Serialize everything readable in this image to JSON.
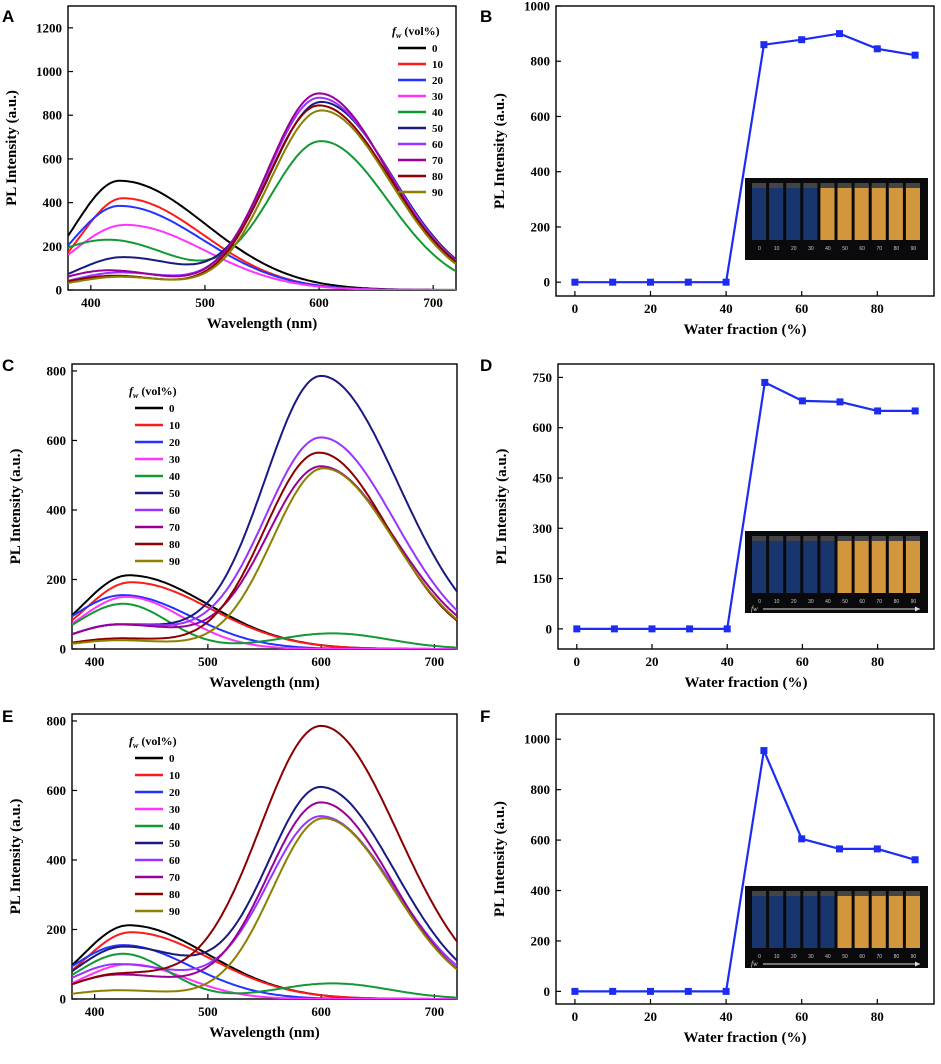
{
  "colors": {
    "series_0": "#000000",
    "series_10": "#ff1a1a",
    "series_20": "#2233ff",
    "series_30": "#ff33ff",
    "series_40": "#119933",
    "series_50": "#1a1a80",
    "series_60": "#9933ff",
    "series_70": "#990099",
    "series_80": "#8b0000",
    "series_90": "#8b8000",
    "line_blue": "#1c2cf0",
    "vial_blue": "#1b3a78",
    "vial_orange": "#e8a543"
  },
  "legend": {
    "title_f": "f",
    "title_w": "w",
    "title_rest": " (vol%)",
    "entries": [
      "0",
      "10",
      "20",
      "30",
      "40",
      "50",
      "60",
      "70",
      "80",
      "90"
    ]
  },
  "chart_data": [
    {
      "panel": "A",
      "type": "line",
      "title": "",
      "xlabel": "Wavelength (nm)",
      "ylabel": "PL Intensity (a.u.)",
      "xlim": [
        380,
        720
      ],
      "ylim": [
        0,
        1300
      ],
      "xticks": [
        400,
        500,
        600,
        700
      ],
      "yticks": [
        0,
        200,
        400,
        600,
        800,
        1000,
        1200
      ],
      "series": [
        {
          "name": "0",
          "blue": {
            "A": 500,
            "mu": 425,
            "sl": 38,
            "sr": 75
          },
          "orange": {
            "A": 0,
            "mu": 600,
            "sl": 45,
            "sr": 60
          },
          "base": 0
        },
        {
          "name": "10",
          "blue": {
            "A": 420,
            "mu": 428,
            "sl": 36,
            "sr": 70
          },
          "orange": {
            "A": 0,
            "mu": 600,
            "sl": 45,
            "sr": 60
          },
          "base": 0
        },
        {
          "name": "20",
          "blue": {
            "A": 385,
            "mu": 425,
            "sl": 40,
            "sr": 72
          },
          "orange": {
            "A": 0,
            "mu": 600,
            "sl": 45,
            "sr": 60
          },
          "base": 0
        },
        {
          "name": "30",
          "blue": {
            "A": 298,
            "mu": 430,
            "sl": 45,
            "sr": 70
          },
          "orange": {
            "A": 0,
            "mu": 600,
            "sl": 45,
            "sr": 60
          },
          "base": 0
        },
        {
          "name": "40",
          "blue": {
            "A": 230,
            "mu": 415,
            "sl": 60,
            "sr": 60
          },
          "orange": {
            "A": 680,
            "mu": 602,
            "sl": 45,
            "sr": 58
          },
          "base": 0
        },
        {
          "name": "50",
          "blue": {
            "A": 150,
            "mu": 428,
            "sl": 40,
            "sr": 55
          },
          "orange": {
            "A": 860,
            "mu": 602,
            "sl": 45,
            "sr": 62
          },
          "base": 0
        },
        {
          "name": "60",
          "blue": {
            "A": 80,
            "mu": 425,
            "sl": 40,
            "sr": 50
          },
          "orange": {
            "A": 880,
            "mu": 600,
            "sl": 45,
            "sr": 62
          },
          "base": 0
        },
        {
          "name": "70",
          "blue": {
            "A": 90,
            "mu": 415,
            "sl": 40,
            "sr": 50
          },
          "orange": {
            "A": 900,
            "mu": 600,
            "sl": 45,
            "sr": 60
          },
          "base": 0
        },
        {
          "name": "80",
          "blue": {
            "A": 65,
            "mu": 420,
            "sl": 40,
            "sr": 45
          },
          "orange": {
            "A": 845,
            "mu": 600,
            "sl": 45,
            "sr": 62
          },
          "base": 0
        },
        {
          "name": "90",
          "blue": {
            "A": 60,
            "mu": 425,
            "sl": 40,
            "sr": 45
          },
          "orange": {
            "A": 822,
            "mu": 602,
            "sl": 45,
            "sr": 60
          },
          "base": 0
        }
      ]
    },
    {
      "panel": "B",
      "type": "line",
      "title": "",
      "xlabel": "Water fraction (%)",
      "ylabel": "PL Intensity (a.u.)",
      "xlim": [
        -5,
        95
      ],
      "ylim": [
        -50,
        1000
      ],
      "xticks": [
        0,
        20,
        40,
        60,
        80
      ],
      "yticks": [
        0,
        200,
        400,
        600,
        800,
        1000
      ],
      "x": [
        0,
        10,
        20,
        30,
        40,
        50,
        60,
        70,
        80,
        90
      ],
      "values": [
        0,
        0,
        0,
        0,
        0,
        860,
        878,
        900,
        845,
        822
      ],
      "inset": {
        "vial_labels": [
          "0",
          "10",
          "20",
          "30",
          "40",
          "50",
          "60",
          "70",
          "80",
          "90"
        ],
        "orange_from": 4,
        "arrow": false
      }
    },
    {
      "panel": "C",
      "type": "line",
      "title": "",
      "xlabel": "Wavelength (nm)",
      "ylabel": "PL Intensity (a.u.)",
      "xlim": [
        380,
        720
      ],
      "ylim": [
        0,
        820
      ],
      "xticks": [
        400,
        500,
        600,
        700
      ],
      "yticks": [
        0,
        200,
        400,
        600,
        800
      ],
      "series": [
        {
          "name": "0",
          "blue": {
            "A": 212,
            "mu": 430,
            "sl": 40,
            "sr": 70
          },
          "orange": {
            "A": 0,
            "mu": 600,
            "sl": 45,
            "sr": 60
          },
          "base": 0
        },
        {
          "name": "10",
          "blue": {
            "A": 192,
            "mu": 432,
            "sl": 40,
            "sr": 70
          },
          "orange": {
            "A": 0,
            "mu": 600,
            "sl": 45,
            "sr": 60
          },
          "base": 0
        },
        {
          "name": "20",
          "blue": {
            "A": 155,
            "mu": 425,
            "sl": 45,
            "sr": 60
          },
          "orange": {
            "A": 0,
            "mu": 600,
            "sl": 45,
            "sr": 60
          },
          "base": 0
        },
        {
          "name": "30",
          "blue": {
            "A": 150,
            "mu": 428,
            "sl": 40,
            "sr": 50
          },
          "orange": {
            "A": 0,
            "mu": 600,
            "sl": 45,
            "sr": 60
          },
          "base": 0
        },
        {
          "name": "40",
          "blue": {
            "A": 130,
            "mu": 425,
            "sl": 40,
            "sr": 40
          },
          "orange": {
            "A": 45,
            "mu": 610,
            "sl": 50,
            "sr": 50
          },
          "base": 0
        },
        {
          "name": "50",
          "blue": {
            "A": 70,
            "mu": 420,
            "sl": 40,
            "sr": 60
          },
          "orange": {
            "A": 785,
            "mu": 600,
            "sl": 50,
            "sr": 68
          },
          "base": 0
        },
        {
          "name": "60",
          "blue": {
            "A": 70,
            "mu": 420,
            "sl": 40,
            "sr": 60
          },
          "orange": {
            "A": 608,
            "mu": 600,
            "sl": 50,
            "sr": 65
          },
          "base": 0
        },
        {
          "name": "70",
          "blue": {
            "A": 70,
            "mu": 420,
            "sl": 40,
            "sr": 60
          },
          "orange": {
            "A": 525,
            "mu": 600,
            "sl": 48,
            "sr": 65
          },
          "base": 0
        },
        {
          "name": "80",
          "blue": {
            "A": 30,
            "mu": 420,
            "sl": 40,
            "sr": 50
          },
          "orange": {
            "A": 565,
            "mu": 598,
            "sl": 48,
            "sr": 62
          },
          "base": 0
        },
        {
          "name": "90",
          "blue": {
            "A": 25,
            "mu": 420,
            "sl": 40,
            "sr": 50
          },
          "orange": {
            "A": 520,
            "mu": 602,
            "sl": 45,
            "sr": 62
          },
          "base": 0
        }
      ]
    },
    {
      "panel": "D",
      "type": "line",
      "title": "",
      "xlabel": "Water fraction (%)",
      "ylabel": "PL Intensity (a.u.)",
      "xlim": [
        -5,
        95
      ],
      "ylim": [
        -60,
        790
      ],
      "xticks": [
        0,
        20,
        40,
        60,
        80
      ],
      "yticks": [
        0,
        150,
        300,
        450,
        600,
        750
      ],
      "x": [
        0,
        10,
        20,
        30,
        40,
        50,
        60,
        70,
        80,
        90
      ],
      "values": [
        0,
        0,
        0,
        0,
        0,
        735,
        680,
        677,
        650,
        650
      ],
      "inset": {
        "vial_labels": [
          "0",
          "10",
          "20",
          "30",
          "40",
          "50",
          "60",
          "70",
          "80",
          "90"
        ],
        "orange_from": 5,
        "arrow": true,
        "arrow_label": "fw"
      }
    },
    {
      "panel": "E",
      "type": "line",
      "title": "",
      "xlabel": "Wavelength (nm)",
      "ylabel": "PL Intensity (a.u.)",
      "xlim": [
        380,
        720
      ],
      "ylim": [
        0,
        820
      ],
      "xticks": [
        400,
        500,
        600,
        700
      ],
      "yticks": [
        0,
        200,
        400,
        600,
        800
      ],
      "series": [
        {
          "name": "0",
          "blue": {
            "A": 212,
            "mu": 430,
            "sl": 40,
            "sr": 70
          },
          "orange": {
            "A": 0,
            "mu": 600,
            "sl": 45,
            "sr": 60
          },
          "base": 0
        },
        {
          "name": "10",
          "blue": {
            "A": 192,
            "mu": 432,
            "sl": 40,
            "sr": 70
          },
          "orange": {
            "A": 0,
            "mu": 600,
            "sl": 45,
            "sr": 60
          },
          "base": 0
        },
        {
          "name": "20",
          "blue": {
            "A": 155,
            "mu": 425,
            "sl": 45,
            "sr": 60
          },
          "orange": {
            "A": 0,
            "mu": 600,
            "sl": 45,
            "sr": 60
          },
          "base": 0
        },
        {
          "name": "30",
          "blue": {
            "A": 100,
            "mu": 430,
            "sl": 40,
            "sr": 50
          },
          "orange": {
            "A": 0,
            "mu": 600,
            "sl": 45,
            "sr": 60
          },
          "base": 0
        },
        {
          "name": "40",
          "blue": {
            "A": 130,
            "mu": 425,
            "sl": 40,
            "sr": 40
          },
          "orange": {
            "A": 45,
            "mu": 610,
            "sl": 50,
            "sr": 50
          },
          "base": 0
        },
        {
          "name": "50",
          "blue": {
            "A": 150,
            "mu": 425,
            "sl": 40,
            "sr": 60
          },
          "orange": {
            "A": 608,
            "mu": 600,
            "sl": 48,
            "sr": 65
          },
          "base": 0
        },
        {
          "name": "60",
          "blue": {
            "A": 100,
            "mu": 420,
            "sl": 40,
            "sr": 60
          },
          "orange": {
            "A": 525,
            "mu": 600,
            "sl": 48,
            "sr": 65
          },
          "base": 0
        },
        {
          "name": "70",
          "blue": {
            "A": 70,
            "mu": 420,
            "sl": 40,
            "sr": 60
          },
          "orange": {
            "A": 565,
            "mu": 600,
            "sl": 48,
            "sr": 62
          },
          "base": 0
        },
        {
          "name": "80",
          "blue": {
            "A": 70,
            "mu": 420,
            "sl": 40,
            "sr": 60
          },
          "orange": {
            "A": 785,
            "mu": 600,
            "sl": 55,
            "sr": 68
          },
          "base": 0
        },
        {
          "name": "90",
          "blue": {
            "A": 25,
            "mu": 420,
            "sl": 40,
            "sr": 50
          },
          "orange": {
            "A": 520,
            "mu": 602,
            "sl": 45,
            "sr": 62
          },
          "base": 0
        }
      ]
    },
    {
      "panel": "F",
      "type": "line",
      "title": "",
      "xlabel": "Water fraction (%)",
      "ylabel": "PL Intensity (a.u.)",
      "xlim": [
        -5,
        95
      ],
      "ylim": [
        -50,
        1100
      ],
      "xticks": [
        0,
        20,
        40,
        60,
        80
      ],
      "yticks": [
        0,
        200,
        400,
        600,
        800,
        1000
      ],
      "x": [
        0,
        10,
        20,
        30,
        40,
        50,
        60,
        70,
        80,
        90
      ],
      "values": [
        0,
        0,
        0,
        0,
        0,
        955,
        605,
        565,
        565,
        522
      ],
      "inset": {
        "vial_labels": [
          "0",
          "10",
          "20",
          "30",
          "40",
          "50",
          "60",
          "70",
          "80",
          "90"
        ],
        "orange_from": 5,
        "arrow": true,
        "arrow_label": "fw"
      }
    }
  ]
}
